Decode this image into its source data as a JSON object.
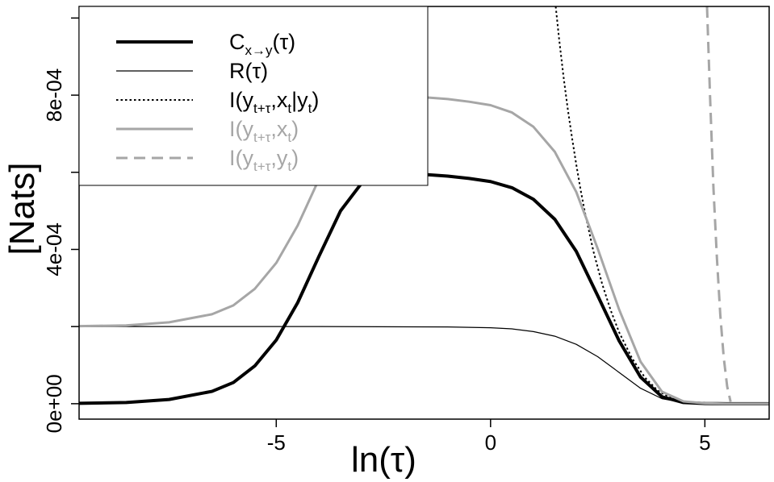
{
  "chart_data": {
    "type": "line",
    "xlabel": "ln(τ)",
    "ylabel": "[Nats]",
    "xlim": [
      -9.6,
      6.5
    ],
    "ylim": [
      -4e-05,
      0.00103
    ],
    "x_ticks": [
      -5,
      0,
      5
    ],
    "x_tick_labels": [
      "-5",
      "0",
      "5"
    ],
    "y_ticks": [
      0,
      0.0002,
      0.0004,
      0.0006,
      0.0008,
      0.001
    ],
    "y_tick_labels": [
      "0e+00",
      "",
      "4e-04",
      "",
      "8e-04",
      ""
    ],
    "grid": false,
    "legend_position": "top-left",
    "legend": [
      {
        "main": "C",
        "sub": "x→y",
        "tail": "(τ)",
        "color": "#000000",
        "dash": "solid",
        "width": 4
      },
      {
        "main": "R(τ)",
        "sub": "",
        "tail": "",
        "color": "#000000",
        "dash": "solid",
        "width": 1.2
      },
      {
        "main": "I(y",
        "sub": "t+τ",
        "tail": ",x",
        "sub2": "t",
        "tail2": "|y",
        "sub3": "t",
        "tail3": ")",
        "color": "#000000",
        "dash": "dotted",
        "width": 2
      },
      {
        "main": "I(y",
        "sub": "t+τ",
        "tail": ",x",
        "sub2": "t",
        "tail2": ")",
        "sub3": "",
        "tail3": "",
        "color": "#a6a6a6",
        "dash": "solid",
        "width": 3
      },
      {
        "main": "I(y",
        "sub": "t+τ",
        "tail": ",y",
        "sub2": "t",
        "tail2": ")",
        "sub3": "",
        "tail3": "",
        "color": "#a6a6a6",
        "dash": "dashed",
        "width": 3
      }
    ],
    "series": [
      {
        "key": "c_xy",
        "color": "#000000",
        "dash": "solid",
        "width": 4,
        "x": [
          -9.6,
          -8.5,
          -7.5,
          -6.5,
          -6.0,
          -5.5,
          -5.0,
          -4.5,
          -4.0,
          -3.5,
          -3.0,
          -2.5,
          -2.0,
          -1.5,
          -1.0,
          -0.5,
          0.0,
          0.5,
          1.0,
          1.5,
          2.0,
          2.5,
          3.0,
          3.5,
          4.0,
          4.5,
          5.0,
          5.5,
          6.0,
          6.5
        ],
        "y": [
          1e-06,
          3e-06,
          1.1e-05,
          3.2e-05,
          5.5e-05,
          9.8e-05,
          0.000165,
          0.000262,
          0.000383,
          0.0005,
          0.000573,
          0.000597,
          0.000598,
          0.000594,
          0.00059,
          0.000584,
          0.000576,
          0.00056,
          0.00053,
          0.000478,
          0.000395,
          0.00028,
          0.000163,
          6.9e-05,
          1.8e-05,
          3e-06,
          5e-07,
          0.0,
          0.0,
          0.0
        ]
      },
      {
        "key": "r_tau",
        "color": "#000000",
        "dash": "solid",
        "width": 1.2,
        "x": [
          -9.6,
          -7.0,
          -4.0,
          -1.0,
          0.0,
          0.5,
          1.0,
          1.5,
          2.0,
          2.5,
          3.0,
          3.5,
          4.0,
          4.5,
          5.0,
          5.5,
          6.0,
          6.5
        ],
        "y": [
          0.0002,
          0.0002,
          0.0002,
          0.000199,
          0.000197,
          0.000194,
          0.000187,
          0.000175,
          0.000154,
          0.000122,
          8.1e-05,
          4e-05,
          1.3e-05,
          3e-06,
          5e-07,
          0.0,
          0.0,
          0.0
        ]
      },
      {
        "key": "i_cond",
        "color": "#000000",
        "dash": "dotted",
        "width": 2,
        "x": [
          1.52,
          1.6,
          1.7,
          1.8,
          1.9,
          2.0,
          2.1,
          2.2,
          2.4,
          2.6,
          2.8,
          3.0,
          3.3,
          3.6,
          3.9,
          4.2,
          4.5,
          4.8,
          5.0,
          5.5,
          6.0,
          6.5
        ],
        "y": [
          0.00103,
          0.000945,
          0.00085,
          0.000765,
          0.00069,
          0.00062,
          0.000555,
          0.000497,
          0.000395,
          0.000312,
          0.000243,
          0.000185,
          0.000118,
          6.8e-05,
          3.4e-05,
          1.5e-05,
          6e-06,
          2e-06,
          1e-06,
          0.0,
          0.0,
          0.0
        ]
      },
      {
        "key": "i_xy",
        "color": "#a6a6a6",
        "dash": "solid",
        "width": 3,
        "x": [
          -9.6,
          -8.5,
          -7.5,
          -6.5,
          -6.0,
          -5.5,
          -5.0,
          -4.5,
          -4.0,
          -3.5,
          -3.0,
          -2.5,
          -2.0,
          -1.5,
          -1.0,
          -0.5,
          0.0,
          0.5,
          1.0,
          1.5,
          2.0,
          2.5,
          3.0,
          3.5,
          4.0,
          4.5,
          5.0,
          5.5,
          6.0,
          6.5
        ],
        "y": [
          0.000201,
          0.000203,
          0.000211,
          0.000232,
          0.000255,
          0.000298,
          0.000365,
          0.000462,
          0.000583,
          0.0007,
          0.000773,
          0.000797,
          0.000797,
          0.000794,
          0.00079,
          0.000783,
          0.000774,
          0.000755,
          0.000718,
          0.000653,
          0.000549,
          0.000402,
          0.000244,
          0.000109,
          3.1e-05,
          6e-06,
          1e-06,
          0.0,
          0.0,
          0.0
        ]
      },
      {
        "key": "i_yy",
        "color": "#a6a6a6",
        "dash": "dashed",
        "width": 3,
        "x": [
          5.05,
          5.12,
          5.2,
          5.28,
          5.36,
          5.44,
          5.52,
          5.6
        ],
        "y": [
          0.00103,
          0.0008,
          0.00056,
          0.00038,
          0.00023,
          0.00012,
          4.5e-05,
          5e-06
        ]
      }
    ]
  }
}
